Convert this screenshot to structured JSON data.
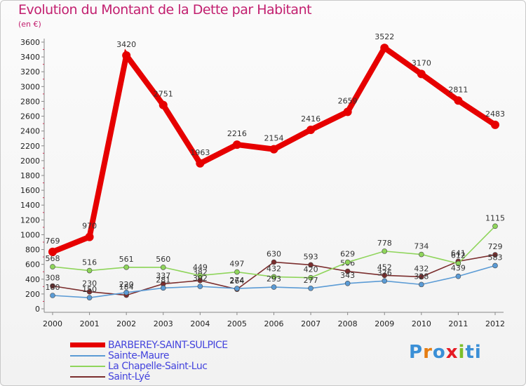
{
  "title": "Evolution du Montant de la Dette par Habitant",
  "unit": "(en €)",
  "brand": [
    "P",
    "r",
    "o",
    "x",
    "i",
    "ti"
  ],
  "chart_data": {
    "type": "line",
    "x": [
      "2000",
      "2001",
      "2002",
      "2003",
      "2004",
      "2005",
      "2006",
      "2007",
      "2008",
      "2009",
      "2010",
      "2011",
      "2012"
    ],
    "ylim": [
      0,
      3600
    ],
    "yticks": [
      0,
      200,
      400,
      600,
      800,
      1000,
      1200,
      1400,
      1600,
      1800,
      2000,
      2200,
      2400,
      2600,
      2800,
      3000,
      3200,
      3400,
      3600
    ],
    "grid": false,
    "legend_position": "bottom-left",
    "series": [
      {
        "name": "BARBEREY-SAINT-SULPICE",
        "color": "#e60000",
        "values": [
          769,
          970,
          3420,
          2751,
          1963,
          2216,
          2154,
          2416,
          2659,
          3522,
          3170,
          2811,
          2483
        ]
      },
      {
        "name": "Sainte-Maure",
        "color": "#5b9bd5",
        "values": [
          180,
          150,
          220,
          281,
          302,
          274,
          293,
          277,
          343,
          376,
          328,
          439,
          583
        ]
      },
      {
        "name": "La Chapelle-Saint-Luc",
        "color": "#8fd55b",
        "values": [
          568,
          516,
          561,
          560,
          449,
          497,
          432,
          420,
          629,
          778,
          734,
          612,
          1115
        ]
      },
      {
        "name": "Saint-Lyé",
        "color": "#7b2e2e",
        "values": [
          308,
          230,
          184,
          337,
          382,
          264,
          630,
          593,
          506,
          452,
          432,
          641,
          729
        ]
      }
    ]
  }
}
